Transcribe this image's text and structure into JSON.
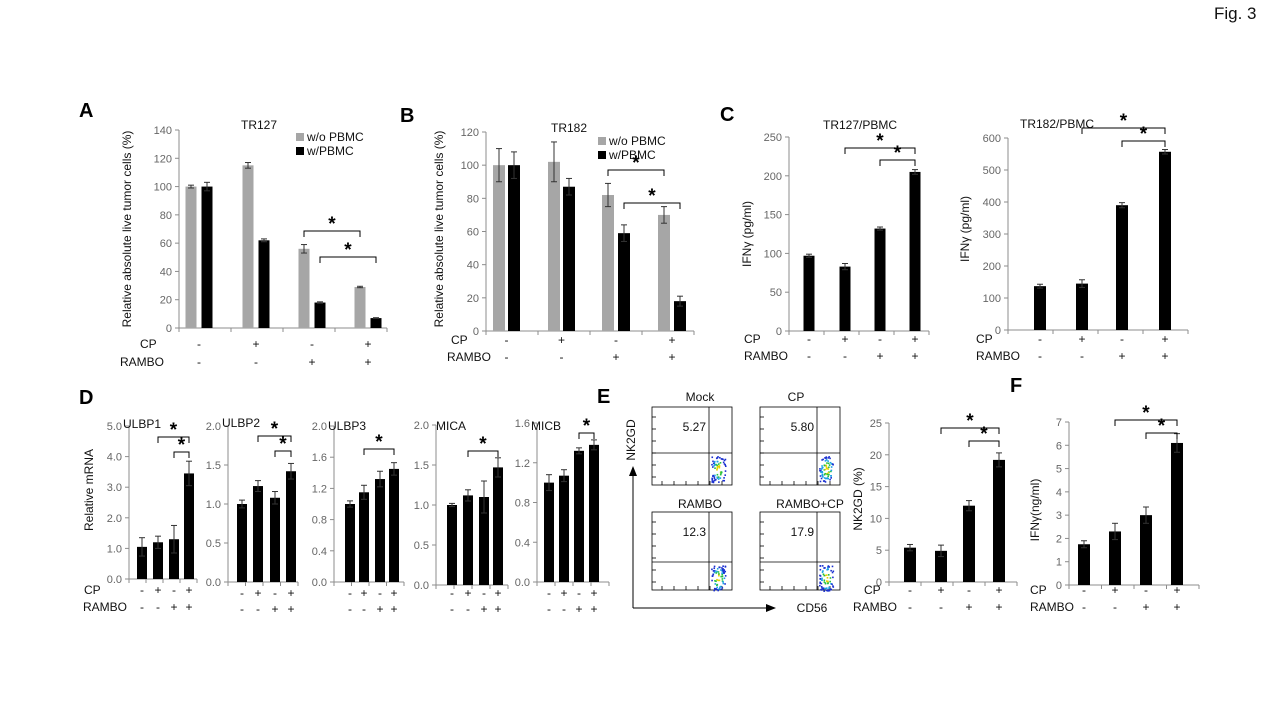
{
  "figure_label": "Fig. 3",
  "colors": {
    "gray": "#a6a6a6",
    "black": "#000000",
    "axis": "#8c8c8c"
  },
  "cond_labels": {
    "cp": "CP",
    "rambo": "RAMBO"
  },
  "chart_data": [
    {
      "id": "A",
      "type": "bar",
      "panel_label": "A",
      "title": "TR127",
      "ylabel": "Relative  absolute live tumor cells (%)",
      "ylim": [
        0,
        140
      ],
      "yticks": [
        0,
        20,
        40,
        60,
        80,
        100,
        120,
        140
      ],
      "cp": [
        "-",
        "+",
        "-",
        "+"
      ],
      "rambo": [
        "-",
        "-",
        "+",
        "+"
      ],
      "series": [
        {
          "name": "w/o PBMC",
          "color": "#a6a6a6",
          "values": [
            100,
            115,
            56,
            29
          ],
          "errors": [
            1,
            2,
            3,
            0.5
          ]
        },
        {
          "name": "w/PBMC",
          "color": "#000000",
          "values": [
            100,
            62,
            18,
            7
          ],
          "errors": [
            3,
            1,
            0.5,
            0.3
          ]
        }
      ],
      "legend_position": "top-right",
      "significance": [
        {
          "from": 2,
          "to": 3,
          "level": 0
        },
        {
          "from": 2.5,
          "to": 3.5,
          "level": 1
        }
      ]
    },
    {
      "id": "B",
      "type": "bar",
      "panel_label": "B",
      "title": "TR182",
      "ylabel": "Relative  absolute live tumor cells (%)",
      "ylim": [
        0,
        120
      ],
      "yticks": [
        0,
        20,
        40,
        60,
        80,
        100,
        120
      ],
      "cp": [
        "-",
        "+",
        "-",
        "+"
      ],
      "rambo": [
        "-",
        "-",
        "+",
        "+"
      ],
      "series": [
        {
          "name": "w/o PBMC",
          "color": "#a6a6a6",
          "values": [
            100,
            102,
            82,
            70
          ],
          "errors": [
            10,
            12,
            7,
            5
          ]
        },
        {
          "name": "w/PBMC",
          "color": "#000000",
          "values": [
            100,
            87,
            59,
            18
          ],
          "errors": [
            8,
            5,
            5,
            3
          ]
        }
      ],
      "legend_position": "top-right",
      "significance": [
        {
          "from": 2,
          "to": 3,
          "level": 1
        },
        {
          "from": 2.5,
          "to": 3.5,
          "level": 0
        }
      ]
    },
    {
      "id": "C1",
      "type": "bar",
      "panel_label": "C",
      "title": "TR127/PBMC",
      "ylabel": "IFNγ (pg/ml)",
      "ylim": [
        0,
        250
      ],
      "yticks": [
        0,
        50,
        100,
        150,
        200,
        250
      ],
      "cp": [
        "-",
        "+",
        "-",
        "+"
      ],
      "rambo": [
        "-",
        "-",
        "+",
        "+"
      ],
      "series": [
        {
          "name": "",
          "color": "#000000",
          "values": [
            97,
            83,
            132,
            205
          ],
          "errors": [
            2,
            4,
            2,
            3
          ]
        }
      ],
      "significance": [
        {
          "from": 1,
          "to": 3,
          "level": 1
        },
        {
          "from": 2,
          "to": 3,
          "level": 0
        }
      ]
    },
    {
      "id": "C2",
      "type": "bar",
      "panel_label": "",
      "title": "TR182/PBMC",
      "ylabel": "IFNγ (pg/ml)",
      "ylim": [
        0,
        600
      ],
      "yticks": [
        0,
        100,
        200,
        300,
        400,
        500,
        600
      ],
      "cp": [
        "-",
        "+",
        "-",
        "+"
      ],
      "rambo": [
        "-",
        "-",
        "+",
        "+"
      ],
      "series": [
        {
          "name": "",
          "color": "#000000",
          "values": [
            137,
            145,
            390,
            557
          ],
          "errors": [
            6,
            12,
            8,
            7
          ]
        }
      ],
      "significance": [
        {
          "from": 1,
          "to": 3,
          "level": 1
        },
        {
          "from": 2,
          "to": 3,
          "level": 0
        }
      ]
    },
    {
      "id": "D1",
      "type": "bar",
      "panel_label": "D",
      "title": "ULBP1",
      "ylabel": "Relative  mRNA",
      "ylim": [
        0,
        5
      ],
      "yticks": [
        "0.0",
        "1.0",
        "2.0",
        "3.0",
        "4.0",
        "5.0"
      ],
      "cp": [
        "-",
        "+",
        "-",
        "+"
      ],
      "rambo": [
        "-",
        "-",
        "+",
        "+"
      ],
      "series": [
        {
          "name": "",
          "color": "#000000",
          "values": [
            1.05,
            1.2,
            1.3,
            3.45
          ],
          "errors": [
            0.3,
            0.2,
            0.45,
            0.4
          ]
        }
      ],
      "significance": [
        {
          "from": 1,
          "to": 3,
          "level": 1
        },
        {
          "from": 2,
          "to": 3,
          "level": 0
        }
      ]
    },
    {
      "id": "D2",
      "type": "bar",
      "panel_label": "",
      "title": "ULBP2",
      "ylabel": "",
      "ylim": [
        0,
        2
      ],
      "yticks": [
        "0.0",
        "0.5",
        "1.0",
        "1.5",
        "2.0"
      ],
      "cp": [
        "-",
        "+",
        "-",
        "+"
      ],
      "rambo": [
        "-",
        "-",
        "+",
        "+"
      ],
      "series": [
        {
          "name": "",
          "color": "#000000",
          "values": [
            1.0,
            1.23,
            1.08,
            1.42
          ],
          "errors": [
            0.05,
            0.07,
            0.08,
            0.1
          ]
        }
      ],
      "significance": [
        {
          "from": 1,
          "to": 3,
          "level": 1
        },
        {
          "from": 2,
          "to": 3,
          "level": 0
        }
      ]
    },
    {
      "id": "D3",
      "type": "bar",
      "panel_label": "",
      "title": "ULBP3",
      "ylabel": "",
      "ylim": [
        0,
        2
      ],
      "yticks": [
        "0.0",
        "0.4",
        "0.8",
        "1.2",
        "1.6",
        "2.0"
      ],
      "cp": [
        "-",
        "+",
        "-",
        "+"
      ],
      "rambo": [
        "-",
        "-",
        "+",
        "+"
      ],
      "series": [
        {
          "name": "",
          "color": "#000000",
          "values": [
            1.0,
            1.15,
            1.32,
            1.45
          ],
          "errors": [
            0.04,
            0.09,
            0.1,
            0.08
          ]
        }
      ],
      "significance": [
        {
          "from": 1,
          "to": 3,
          "level": 0
        }
      ]
    },
    {
      "id": "D4",
      "type": "bar",
      "panel_label": "",
      "title": "MICA",
      "ylabel": "",
      "ylim": [
        0,
        2
      ],
      "yticks": [
        "0.0",
        "0.5",
        "1.0",
        "1.5",
        "2.0"
      ],
      "cp": [
        "-",
        "+",
        "-",
        "+"
      ],
      "rambo": [
        "-",
        "-",
        "+",
        "+"
      ],
      "series": [
        {
          "name": "",
          "color": "#000000",
          "values": [
            1.0,
            1.12,
            1.1,
            1.47
          ],
          "errors": [
            0.02,
            0.07,
            0.2,
            0.12
          ]
        }
      ],
      "significance": [
        {
          "from": 1,
          "to": 3,
          "level": 0
        }
      ]
    },
    {
      "id": "D5",
      "type": "bar",
      "panel_label": "",
      "title": "MICB",
      "ylabel": "",
      "ylim": [
        0,
        1.6
      ],
      "yticks": [
        "0.0",
        "0.4",
        "0.8",
        "1.2",
        "1.6"
      ],
      "cp": [
        "-",
        "+",
        "-",
        "+"
      ],
      "rambo": [
        "-",
        "-",
        "+",
        "+"
      ],
      "series": [
        {
          "name": "",
          "color": "#000000",
          "values": [
            1.0,
            1.07,
            1.32,
            1.38
          ],
          "errors": [
            0.08,
            0.06,
            0.03,
            0.05
          ]
        }
      ],
      "significance": [
        {
          "from": 2,
          "to": 3,
          "level": 0
        }
      ]
    },
    {
      "id": "E_bar",
      "type": "bar",
      "panel_label": "",
      "title": "",
      "ylabel": "NK2GD (%)",
      "ylim": [
        0,
        25
      ],
      "yticks": [
        0,
        5,
        10,
        15,
        20,
        25
      ],
      "cp": [
        "-",
        "+",
        "-",
        "+"
      ],
      "rambo": [
        "-",
        "-",
        "+",
        "+"
      ],
      "series": [
        {
          "name": "",
          "color": "#000000",
          "values": [
            5.4,
            4.9,
            12,
            19.2
          ],
          "errors": [
            0.5,
            0.9,
            0.8,
            1.1
          ]
        }
      ],
      "significance": [
        {
          "from": 1,
          "to": 3,
          "level": 1
        },
        {
          "from": 2,
          "to": 3,
          "level": 0
        }
      ]
    },
    {
      "id": "F",
      "type": "bar",
      "panel_label": "F",
      "title": "",
      "ylabel": "IFNγ(ng/ml)",
      "ylim": [
        0,
        7
      ],
      "yticks": [
        0,
        1,
        2,
        3,
        4,
        5,
        6,
        7
      ],
      "cp": [
        "-",
        "+",
        "-",
        "+"
      ],
      "rambo": [
        "-",
        "-",
        "+",
        "+"
      ],
      "series": [
        {
          "name": "",
          "color": "#000000",
          "values": [
            1.75,
            2.3,
            3.0,
            6.1
          ],
          "errors": [
            0.15,
            0.35,
            0.35,
            0.4
          ]
        }
      ],
      "significance": [
        {
          "from": 1,
          "to": 3,
          "level": 1
        },
        {
          "from": 2,
          "to": 3,
          "level": 0
        }
      ]
    }
  ],
  "flow": {
    "panel_label": "E",
    "x_label": "CD56",
    "y_label": "NK2GD",
    "plots": [
      {
        "title": "Mock",
        "value": "5.27"
      },
      {
        "title": "CP",
        "value": "5.80"
      },
      {
        "title": "RAMBO",
        "value": "12.3"
      },
      {
        "title": "RAMBO+CP",
        "value": "17.9"
      }
    ]
  }
}
